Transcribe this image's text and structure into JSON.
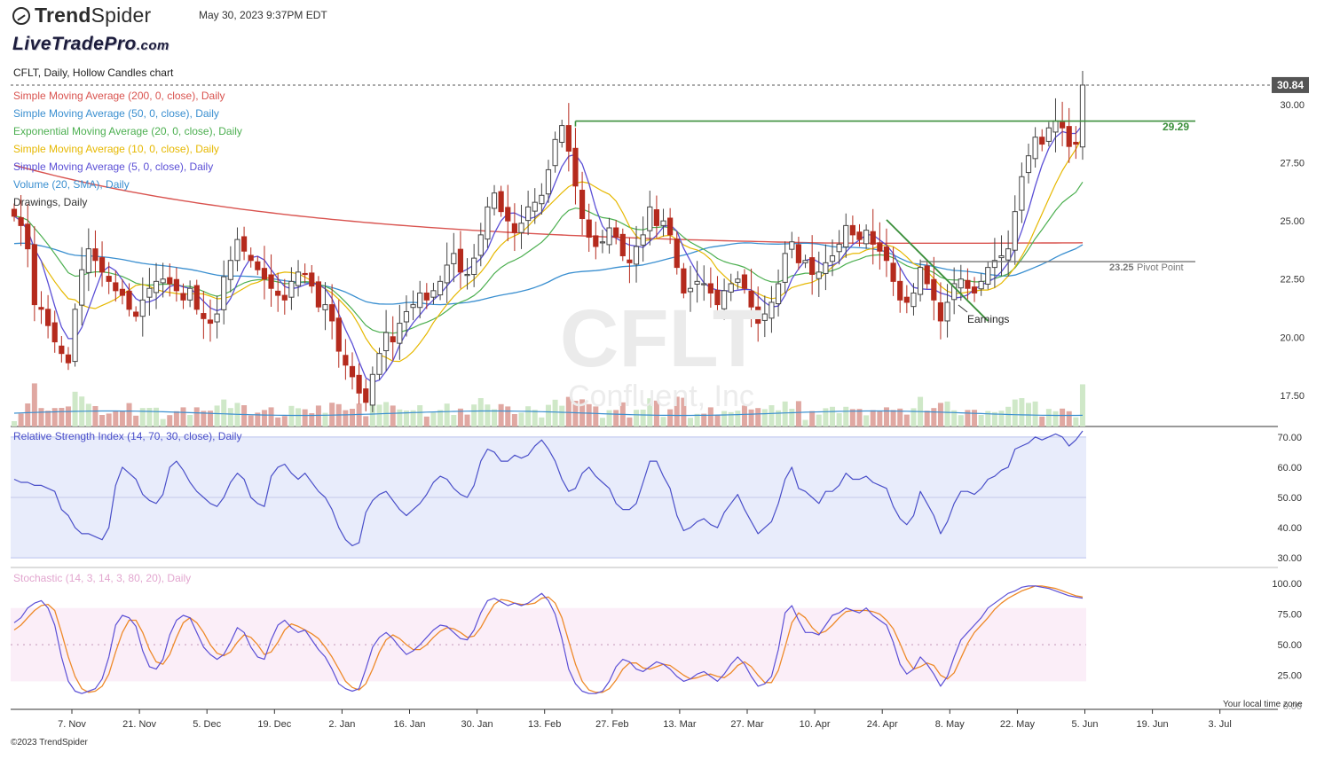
{
  "header": {
    "app_name_bold": "Trend",
    "app_name_rest": "Spider",
    "datetime": "May 30, 2023 9:37PM EDT",
    "watermark_logo_main": "LiveTradePro",
    "watermark_logo_tld": ".com",
    "copyright": "©2023 TrendSpider",
    "timezone_label": "Your local time zone"
  },
  "legend": {
    "chart_title": "CFLT, Daily, Hollow Candles chart",
    "sma200": "Simple Moving Average (200, 0, close), Daily",
    "sma50": "Simple Moving Average (50, 0, close), Daily",
    "ema20": "Exponential Moving Average (20, 0, close), Daily",
    "sma10": "Simple Moving Average (10, 0, close), Daily",
    "sma5": "Simple Moving Average (5, 0, close), Daily",
    "volume": "Volume (20, SMA), Daily",
    "drawings": "Drawings, Daily",
    "rsi": "Relative Strength Index (14, 70, 30, close), Daily",
    "stoch": "Stochastic (14, 3, 14, 3, 80, 20), Daily"
  },
  "watermark": {
    "symbol": "CFLT",
    "company": "Confluent, Inc"
  },
  "colors": {
    "up": "#2e8b3a",
    "down": "#b52a1d",
    "sma200": "#d9534f",
    "sma50": "#3a8fd0",
    "ema20": "#4caf50",
    "sma10": "#e6b800",
    "sma5": "#5b4fd6",
    "rsi": "#4a4fc9",
    "rsi_band": "#e8ecfb",
    "stoch_k": "#5b4fd6",
    "stoch_d": "#ee8a2a",
    "stoch_band": "#fbeef8",
    "resistance": "#3b8f3b",
    "pivot": "#777777"
  },
  "chart_data": {
    "type": "candlestick",
    "title": "CFLT, Daily, Hollow Candles chart",
    "last_price": "30.84",
    "x_ticks": [
      "7. Nov",
      "21. Nov",
      "5. Dec",
      "19. Dec",
      "2. Jan",
      "16. Jan",
      "30. Jan",
      "13. Feb",
      "27. Feb",
      "13. Mar",
      "27. Mar",
      "10. Apr",
      "24. Apr",
      "8. May",
      "22. May",
      "5. Jun",
      "19. Jun",
      "3. Jul"
    ],
    "price_axis": {
      "ticks": [
        "30.00",
        "27.50",
        "25.00",
        "22.50",
        "20.00",
        "17.50"
      ],
      "ylim": [
        16.2,
        31.6
      ]
    },
    "rsi_axis": {
      "ticks": [
        "70.00",
        "60.00",
        "50.00",
        "40.00",
        "30.00"
      ],
      "ylim": [
        28,
        72
      ]
    },
    "stoch_axis": {
      "ticks": [
        "100.00",
        "75.00",
        "50.00",
        "25.00",
        "0.00"
      ],
      "ylim": [
        0,
        103
      ]
    },
    "annotations": {
      "resistance_value": "29.29",
      "pivot_value": "23.25",
      "pivot_label": "Pivot Point",
      "earnings_label": "Earnings"
    },
    "closes": [
      25.2,
      24.8,
      23.8,
      21.4,
      21.2,
      20.5,
      19.8,
      19.3,
      18.9,
      21.2,
      22.9,
      23.8,
      23.3,
      22.8,
      22.4,
      22.0,
      21.8,
      21.2,
      20.9,
      21.6,
      22.1,
      22.4,
      22.5,
      22.3,
      22.0,
      21.6,
      22.1,
      21.2,
      20.8,
      20.6,
      21.0,
      22.6,
      23.3,
      24.2,
      23.7,
      23.3,
      22.9,
      22.5,
      22.1,
      21.8,
      21.6,
      22.4,
      22.8,
      22.7,
      22.2,
      21.3,
      21.4,
      20.7,
      19.4,
      18.8,
      18.3,
      17.6,
      17.2,
      18.4,
      19.3,
      20.2,
      19.8,
      20.6,
      21.1,
      21.4,
      21.9,
      21.6,
      22.0,
      22.4,
      23.1,
      23.6,
      22.8,
      22.7,
      23.4,
      24.4,
      25.6,
      26.2,
      25.4,
      25.0,
      24.5,
      24.9,
      25.6,
      25.8,
      26.1,
      27.2,
      28.5,
      29.1,
      28.0,
      26.5,
      25.1,
      24.3,
      23.9,
      24.1,
      24.7,
      24.3,
      23.5,
      23.2,
      23.9,
      24.4,
      25.6,
      24.8,
      25.0,
      24.4,
      23.0,
      21.9,
      22.1,
      22.4,
      22.3,
      21.9,
      21.4,
      22.0,
      22.3,
      22.5,
      22.1,
      21.3,
      20.6,
      21.0,
      21.5,
      22.3,
      23.6,
      24.1,
      23.2,
      23.3,
      22.7,
      22.8,
      23.2,
      23.5,
      24.0,
      24.8,
      24.4,
      24.2,
      24.6,
      24.0,
      23.7,
      23.3,
      22.4,
      21.6,
      21.5,
      21.9,
      23.0,
      22.3,
      21.6,
      20.7,
      21.5,
      22.3,
      22.5,
      22.1,
      21.9,
      22.4,
      23.0,
      23.3,
      23.5,
      23.8,
      25.4,
      26.9,
      27.8,
      28.6,
      28.3,
      29.0,
      29.3,
      29.0,
      28.2,
      28.3,
      30.84
    ],
    "rsi": [
      56,
      55,
      55,
      54,
      54,
      53,
      52,
      46,
      44,
      40,
      38,
      38,
      37,
      36,
      40,
      54,
      60,
      58,
      56,
      51,
      49,
      48,
      51,
      60,
      62,
      59,
      55,
      52,
      50,
      48,
      47,
      50,
      55,
      58,
      56,
      50,
      48,
      47,
      57,
      60,
      61,
      58,
      56,
      58,
      55,
      52,
      50,
      46,
      40,
      36,
      34,
      35,
      45,
      49,
      51,
      52,
      49,
      46,
      44,
      46,
      48,
      51,
      55,
      57,
      56,
      53,
      51,
      50,
      54,
      62,
      66,
      65,
      62,
      62,
      64,
      63,
      64,
      67,
      69,
      66,
      62,
      56,
      52,
      53,
      58,
      60,
      57,
      55,
      53,
      48,
      46,
      46,
      48,
      55,
      62,
      62,
      57,
      53,
      44,
      39,
      40,
      42,
      43,
      41,
      40,
      45,
      48,
      51,
      46,
      42,
      38,
      40,
      42,
      48,
      56,
      60,
      53,
      52,
      50,
      48,
      52,
      52,
      54,
      58,
      56,
      56,
      57,
      55,
      54,
      53,
      47,
      43,
      41,
      44,
      52,
      48,
      44,
      38,
      42,
      48,
      52,
      52,
      51,
      53,
      56,
      57,
      59,
      60,
      66,
      67,
      68,
      70,
      69,
      70,
      71,
      70,
      67,
      69,
      72
    ],
    "stoch_k": [
      68,
      72,
      80,
      84,
      86,
      80,
      66,
      40,
      20,
      12,
      10,
      12,
      14,
      22,
      40,
      66,
      74,
      72,
      65,
      45,
      32,
      30,
      38,
      58,
      70,
      74,
      72,
      60,
      48,
      42,
      38,
      42,
      52,
      64,
      60,
      48,
      40,
      38,
      54,
      66,
      70,
      64,
      60,
      62,
      54,
      46,
      40,
      30,
      18,
      14,
      12,
      14,
      30,
      48,
      56,
      60,
      55,
      48,
      42,
      45,
      50,
      56,
      62,
      66,
      65,
      60,
      55,
      54,
      62,
      76,
      86,
      88,
      85,
      82,
      84,
      82,
      84,
      88,
      92,
      86,
      75,
      55,
      30,
      18,
      12,
      10,
      10,
      12,
      20,
      32,
      38,
      36,
      30,
      28,
      32,
      36,
      34,
      30,
      24,
      20,
      22,
      26,
      28,
      24,
      20,
      26,
      34,
      40,
      34,
      24,
      16,
      18,
      24,
      46,
      76,
      82,
      70,
      60,
      60,
      58,
      66,
      74,
      76,
      80,
      78,
      76,
      80,
      74,
      70,
      66,
      52,
      34,
      26,
      30,
      40,
      34,
      26,
      16,
      24,
      40,
      54,
      60,
      66,
      72,
      80,
      84,
      88,
      92,
      94,
      97,
      98,
      98,
      97,
      96,
      94,
      92,
      90,
      89,
      88
    ],
    "stoch_d": [
      62,
      66,
      72,
      78,
      82,
      83,
      78,
      60,
      40,
      24,
      14,
      11,
      12,
      16,
      26,
      44,
      60,
      70,
      70,
      60,
      46,
      36,
      34,
      42,
      56,
      68,
      72,
      68,
      60,
      50,
      43,
      41,
      44,
      52,
      58,
      56,
      50,
      42,
      44,
      52,
      62,
      67,
      65,
      62,
      59,
      55,
      48,
      40,
      30,
      20,
      15,
      13,
      18,
      30,
      44,
      54,
      58,
      55,
      50,
      46,
      46,
      50,
      56,
      61,
      64,
      63,
      60,
      56,
      57,
      64,
      74,
      83,
      87,
      86,
      84,
      83,
      83,
      84,
      88,
      89,
      84,
      72,
      53,
      34,
      20,
      13,
      11,
      11,
      14,
      21,
      30,
      35,
      35,
      31,
      30,
      32,
      34,
      33,
      29,
      25,
      22,
      23,
      25,
      26,
      24,
      23,
      27,
      33,
      36,
      32,
      25,
      19,
      19,
      29,
      48,
      68,
      76,
      72,
      64,
      59,
      61,
      66,
      72,
      77,
      78,
      78,
      78,
      77,
      75,
      70,
      63,
      51,
      38,
      30,
      32,
      35,
      33,
      25,
      22,
      27,
      39,
      51,
      60,
      66,
      72,
      79,
      84,
      88,
      91,
      94,
      96,
      98,
      98,
      97,
      96,
      94,
      92,
      90,
      89
    ]
  }
}
